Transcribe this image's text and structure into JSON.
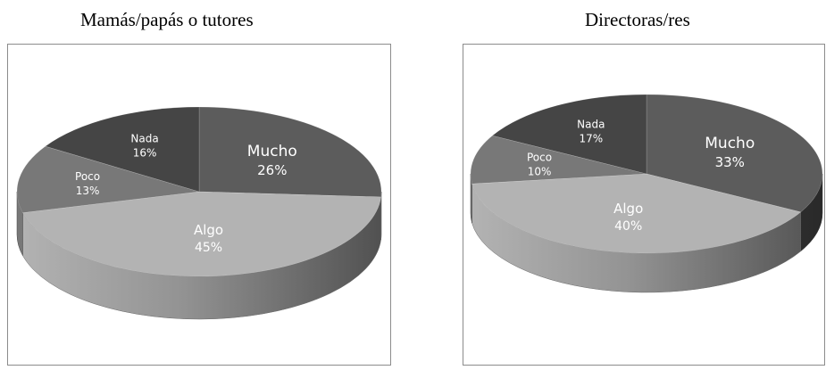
{
  "chart_data": [
    {
      "type": "pie",
      "title": "Mamás/papás o tutores",
      "slices": [
        {
          "label": "Mucho",
          "value": 26,
          "pct": "26%",
          "color": "#5c5c5c"
        },
        {
          "label": "Algo",
          "value": 45,
          "pct": "45%",
          "color": "#b3b3b3"
        },
        {
          "label": "Poco",
          "value": 13,
          "pct": "13%",
          "color": "#787878"
        },
        {
          "label": "Nada",
          "value": 16,
          "pct": "16%",
          "color": "#454545"
        }
      ]
    },
    {
      "type": "pie",
      "title": "Directoras/res",
      "slices": [
        {
          "label": "Mucho",
          "value": 33,
          "pct": "33%",
          "color": "#5c5c5c"
        },
        {
          "label": "Algo",
          "value": 40,
          "pct": "40%",
          "color": "#b3b3b3"
        },
        {
          "label": "Poco",
          "value": 10,
          "pct": "10%",
          "color": "#787878"
        },
        {
          "label": "Nada",
          "value": 17,
          "pct": "17%",
          "color": "#454545"
        }
      ]
    }
  ]
}
